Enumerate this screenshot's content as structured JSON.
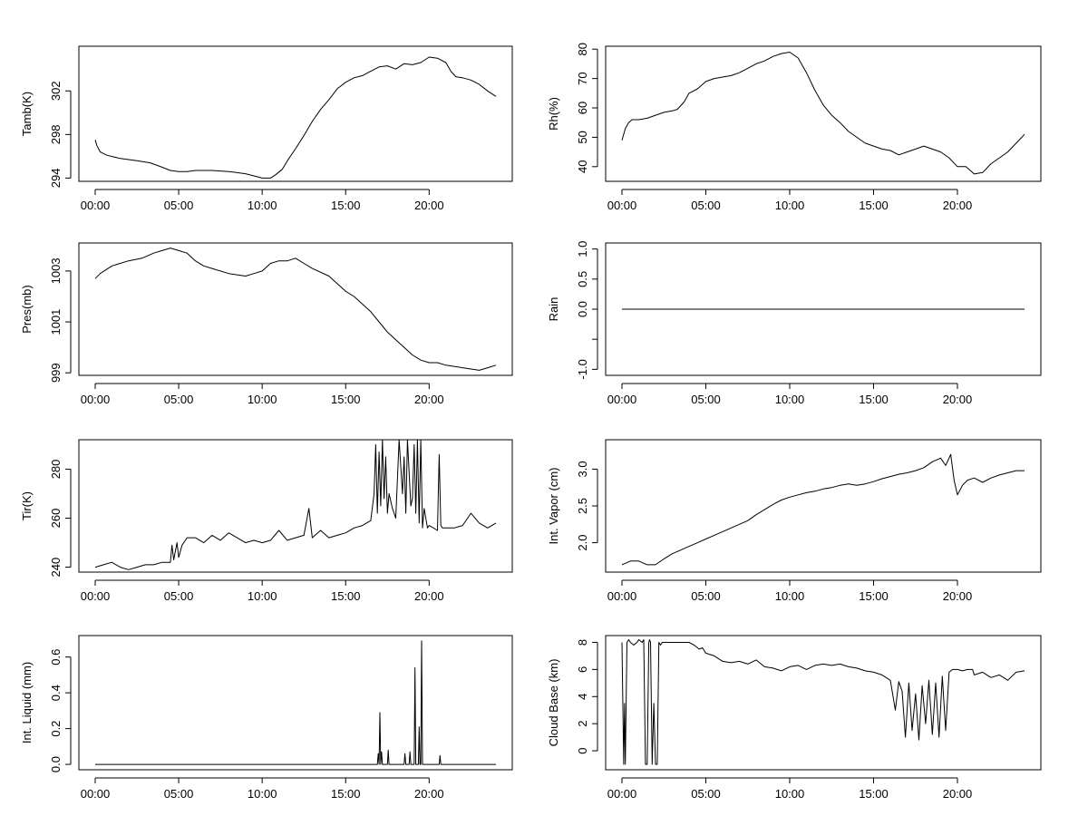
{
  "chart_data": [
    {
      "type": "line",
      "ylabel": "Tamb(K)",
      "xlim": [
        0,
        24
      ],
      "ylim": [
        293.7,
        306.1
      ],
      "xticks": [
        0,
        5,
        10,
        15,
        20
      ],
      "xtick_labels": [
        "00:00",
        "05:00",
        "10:00",
        "15:00",
        "20:00"
      ],
      "yticks": [
        294,
        298,
        302
      ],
      "ytick_labels": [
        "294",
        "298",
        "302"
      ],
      "x": [
        0.0,
        0.1,
        0.3,
        0.7,
        1.5,
        2.5,
        3.3,
        4.0,
        4.5,
        5.0,
        5.5,
        6.0,
        7.0,
        8.0,
        9.0,
        9.5,
        10.0,
        10.5,
        10.8,
        11.2,
        11.6,
        12.0,
        12.5,
        13.0,
        13.5,
        14.0,
        14.5,
        15.0,
        15.5,
        16.0,
        16.5,
        17.0,
        17.5,
        18.0,
        18.5,
        19.0,
        19.5,
        20.0,
        20.5,
        21.0,
        21.3,
        21.6,
        22.0,
        22.5,
        23.0,
        23.5,
        24.0
      ],
      "y": [
        297.5,
        297.0,
        296.4,
        296.1,
        295.8,
        295.6,
        295.4,
        295.0,
        294.7,
        294.6,
        294.6,
        294.7,
        294.7,
        294.6,
        294.4,
        294.2,
        294.0,
        294.0,
        294.3,
        294.8,
        295.8,
        296.7,
        297.9,
        299.2,
        300.3,
        301.2,
        302.2,
        302.8,
        303.2,
        303.4,
        303.8,
        304.2,
        304.3,
        304.0,
        304.5,
        304.4,
        304.6,
        305.1,
        305.0,
        304.6,
        303.8,
        303.3,
        303.2,
        303.0,
        302.6,
        302.0,
        301.5
      ]
    },
    {
      "type": "line",
      "ylabel": "Rh(%)",
      "xlim": [
        0,
        24
      ],
      "ylim": [
        35,
        81
      ],
      "xticks": [
        0,
        5,
        10,
        15,
        20
      ],
      "xtick_labels": [
        "00:00",
        "05:00",
        "10:00",
        "15:00",
        "20:00"
      ],
      "yticks": [
        40,
        50,
        60,
        70,
        80
      ],
      "ytick_labels": [
        "40",
        "50",
        "60",
        "70",
        "80"
      ],
      "x": [
        0.0,
        0.2,
        0.4,
        0.6,
        1.0,
        1.5,
        2.0,
        2.5,
        3.0,
        3.3,
        3.7,
        4.0,
        4.5,
        5.0,
        5.5,
        6.0,
        6.5,
        7.0,
        7.5,
        8.0,
        8.5,
        9.0,
        9.5,
        10.0,
        10.5,
        11.0,
        11.5,
        12.0,
        12.5,
        13.0,
        13.5,
        14.0,
        14.5,
        15.0,
        15.5,
        16.0,
        16.5,
        17.0,
        17.5,
        18.0,
        18.5,
        19.0,
        19.5,
        20.0,
        20.5,
        21.0,
        21.5,
        22.0,
        22.5,
        23.0,
        23.5,
        24.0
      ],
      "y": [
        49.0,
        53.0,
        55.0,
        56.0,
        56.0,
        56.5,
        57.5,
        58.5,
        59.0,
        59.5,
        62.0,
        65.0,
        66.5,
        69.0,
        70.0,
        70.5,
        71.0,
        72.0,
        73.5,
        75.0,
        76.0,
        77.5,
        78.5,
        79.0,
        77.0,
        72.0,
        66.0,
        61.0,
        57.5,
        55.0,
        52.0,
        50.0,
        48.0,
        47.0,
        46.0,
        45.5,
        44.0,
        45.0,
        46.0,
        47.0,
        46.0,
        45.0,
        43.0,
        40.0,
        40.0,
        37.5,
        38.0,
        41.0,
        43.0,
        45.0,
        48.0,
        51.0
      ]
    },
    {
      "type": "line",
      "ylabel": "Pres(mb)",
      "xlim": [
        0,
        24
      ],
      "ylim": [
        998.9,
        1004.1
      ],
      "xticks": [
        0,
        5,
        10,
        15,
        20
      ],
      "xtick_labels": [
        "00:00",
        "05:00",
        "10:00",
        "15:00",
        "20:00"
      ],
      "yticks": [
        999,
        1001,
        1003
      ],
      "ytick_labels": [
        "999",
        "1001",
        "1003"
      ],
      "x": [
        0.0,
        0.3,
        1.0,
        2.0,
        2.8,
        3.5,
        4.0,
        4.5,
        5.0,
        5.5,
        6.0,
        6.5,
        7.0,
        8.0,
        9.0,
        9.5,
        10.0,
        10.5,
        11.0,
        11.5,
        12.0,
        12.5,
        13.0,
        14.0,
        14.5,
        15.0,
        15.5,
        16.0,
        16.5,
        17.0,
        17.5,
        18.0,
        18.5,
        19.0,
        19.5,
        20.0,
        20.5,
        21.0,
        22.0,
        23.0,
        23.5,
        24.0
      ],
      "y": [
        1002.7,
        1002.9,
        1003.2,
        1003.4,
        1003.5,
        1003.7,
        1003.8,
        1003.9,
        1003.8,
        1003.7,
        1003.4,
        1003.2,
        1003.1,
        1002.9,
        1002.8,
        1002.9,
        1003.0,
        1003.3,
        1003.4,
        1003.4,
        1003.5,
        1003.3,
        1003.1,
        1002.8,
        1002.5,
        1002.2,
        1002.0,
        1001.7,
        1001.4,
        1001.0,
        1000.6,
        1000.3,
        1000.0,
        999.7,
        999.5,
        999.4,
        999.4,
        999.3,
        999.2,
        999.1,
        999.2,
        999.3
      ]
    },
    {
      "type": "line",
      "ylabel": "Rain",
      "xlim": [
        0,
        24
      ],
      "ylim": [
        -1.1,
        1.1
      ],
      "xticks": [
        0,
        5,
        10,
        15,
        20
      ],
      "xtick_labels": [
        "00:00",
        "05:00",
        "10:00",
        "15:00",
        "20:00"
      ],
      "yticks": [
        -1.0,
        -0.5,
        0.0,
        0.5,
        1.0
      ],
      "ytick_labels": [
        "-1.0",
        "",
        "0.0",
        "0.5",
        "1.0"
      ],
      "x": [
        0.0,
        24.0
      ],
      "y": [
        0.0,
        0.0
      ]
    },
    {
      "type": "line",
      "ylabel": "Tir(K)",
      "xlim": [
        0,
        24
      ],
      "ylim": [
        238,
        292
      ],
      "xticks": [
        0,
        5,
        10,
        15,
        20
      ],
      "xtick_labels": [
        "00:00",
        "05:00",
        "10:00",
        "15:00",
        "20:00"
      ],
      "yticks": [
        240,
        260,
        280
      ],
      "ytick_labels": [
        "240",
        "260",
        "280"
      ],
      "x": [
        0.0,
        0.5,
        1.0,
        1.5,
        2.0,
        2.5,
        3.0,
        3.5,
        4.0,
        4.5,
        4.6,
        4.7,
        4.9,
        5.0,
        5.2,
        5.5,
        6.0,
        6.5,
        7.0,
        7.5,
        8.0,
        8.5,
        9.0,
        9.5,
        10.0,
        10.5,
        11.0,
        11.5,
        12.0,
        12.5,
        12.8,
        13.0,
        13.5,
        14.0,
        14.5,
        15.0,
        15.5,
        16.0,
        16.5,
        16.7,
        16.8,
        16.9,
        17.0,
        17.1,
        17.2,
        17.3,
        17.4,
        17.5,
        17.6,
        17.8,
        18.0,
        18.2,
        18.4,
        18.5,
        18.6,
        18.7,
        18.9,
        19.0,
        19.1,
        19.2,
        19.3,
        19.4,
        19.5,
        19.6,
        19.7,
        19.9,
        20.0,
        20.5,
        20.6,
        20.7,
        20.8,
        21.0,
        21.5,
        22.0,
        22.5,
        23.0,
        23.5,
        24.0
      ],
      "y": [
        240,
        241,
        242,
        240,
        239,
        240,
        241,
        241,
        242,
        242,
        249,
        243,
        250,
        244,
        249,
        252,
        252,
        250,
        253,
        251,
        254,
        252,
        250,
        251,
        250,
        251,
        255,
        251,
        252,
        253,
        264,
        252,
        255,
        252,
        253,
        254,
        256,
        257,
        259,
        270,
        290,
        262,
        287,
        265,
        292,
        268,
        285,
        262,
        270,
        264,
        260,
        292,
        270,
        285,
        262,
        292,
        265,
        268,
        290,
        262,
        292,
        258,
        292,
        256,
        264,
        256,
        257,
        255,
        286,
        257,
        256,
        256,
        256,
        257,
        262,
        258,
        256,
        258
      ]
    },
    {
      "type": "line",
      "ylabel": "Int. Vapor (cm)",
      "xlim": [
        0,
        24
      ],
      "ylim": [
        1.6,
        3.4
      ],
      "xticks": [
        0,
        5,
        10,
        15,
        20
      ],
      "xtick_labels": [
        "00:00",
        "05:00",
        "10:00",
        "15:00",
        "20:00"
      ],
      "yticks": [
        2.0,
        2.5,
        3.0
      ],
      "ytick_labels": [
        "2.0",
        "2.5",
        "3.0"
      ],
      "x": [
        0.0,
        0.5,
        1.0,
        1.5,
        2.0,
        2.5,
        3.0,
        3.5,
        4.0,
        4.5,
        5.0,
        5.5,
        6.0,
        6.5,
        7.0,
        7.5,
        8.0,
        8.5,
        9.0,
        9.5,
        10.0,
        10.5,
        11.0,
        11.5,
        12.0,
        12.5,
        13.0,
        13.5,
        14.0,
        14.5,
        15.0,
        15.5,
        16.0,
        16.5,
        17.0,
        17.5,
        18.0,
        18.5,
        19.0,
        19.3,
        19.6,
        19.8,
        20.0,
        20.3,
        20.6,
        21.0,
        21.5,
        22.0,
        22.5,
        23.0,
        23.5,
        24.0
      ],
      "y": [
        1.7,
        1.75,
        1.75,
        1.7,
        1.7,
        1.78,
        1.85,
        1.9,
        1.95,
        2.0,
        2.05,
        2.1,
        2.15,
        2.2,
        2.25,
        2.3,
        2.38,
        2.45,
        2.52,
        2.58,
        2.62,
        2.65,
        2.68,
        2.7,
        2.73,
        2.75,
        2.78,
        2.8,
        2.78,
        2.8,
        2.83,
        2.87,
        2.9,
        2.93,
        2.95,
        2.98,
        3.02,
        3.1,
        3.15,
        3.05,
        3.2,
        2.85,
        2.65,
        2.78,
        2.85,
        2.88,
        2.82,
        2.88,
        2.92,
        2.95,
        2.98,
        2.98
      ]
    },
    {
      "type": "line",
      "ylabel": "Int. Liquid (mm)",
      "xlim": [
        0,
        24
      ],
      "ylim": [
        -0.03,
        0.72
      ],
      "xticks": [
        0,
        5,
        10,
        15,
        20
      ],
      "xtick_labels": [
        "00:00",
        "05:00",
        "10:00",
        "15:00",
        "20:00"
      ],
      "yticks": [
        0.0,
        0.2,
        0.4,
        0.6
      ],
      "ytick_labels": [
        "0.0",
        "0.2",
        "0.4",
        "0.6"
      ],
      "x": [
        0.0,
        16.9,
        16.95,
        17.0,
        17.05,
        17.1,
        17.15,
        17.2,
        17.25,
        17.5,
        17.55,
        17.6,
        18.5,
        18.55,
        18.6,
        18.8,
        18.85,
        18.9,
        19.1,
        19.15,
        19.2,
        19.35,
        19.4,
        19.45,
        19.5,
        19.55,
        19.6,
        19.65,
        20.6,
        20.65,
        20.7,
        24.0
      ],
      "y": [
        0.0,
        0.0,
        0.06,
        0.0,
        0.29,
        0.0,
        0.07,
        0.0,
        0.0,
        0.0,
        0.08,
        0.0,
        0.0,
        0.06,
        0.0,
        0.0,
        0.07,
        0.0,
        0.0,
        0.54,
        0.0,
        0.0,
        0.21,
        0.0,
        0.0,
        0.69,
        0.0,
        0.0,
        0.0,
        0.05,
        0.0,
        0.0
      ]
    },
    {
      "type": "line",
      "ylabel": "Cloud Base (km)",
      "xlim": [
        0,
        24
      ],
      "ylim": [
        -1.4,
        8.5
      ],
      "xticks": [
        0,
        5,
        10,
        15,
        20
      ],
      "xtick_labels": [
        "00:00",
        "05:00",
        "10:00",
        "15:00",
        "20:00"
      ],
      "yticks": [
        0,
        2,
        4,
        6,
        8
      ],
      "ytick_labels": [
        "0",
        "2",
        "4",
        "6",
        "8"
      ],
      "x": [
        0.0,
        0.1,
        0.15,
        0.2,
        0.3,
        0.4,
        0.5,
        0.7,
        0.9,
        1.0,
        1.2,
        1.3,
        1.4,
        1.5,
        1.6,
        1.65,
        1.7,
        1.8,
        1.9,
        2.0,
        2.05,
        2.1,
        2.2,
        2.3,
        2.4,
        2.5,
        2.6,
        2.8,
        3.0,
        3.5,
        4.0,
        4.3,
        4.6,
        4.8,
        5.0,
        5.5,
        6.0,
        6.5,
        7.0,
        7.5,
        8.0,
        8.5,
        9.0,
        9.5,
        10.0,
        10.5,
        11.0,
        11.5,
        12.0,
        12.5,
        13.0,
        13.5,
        14.0,
        14.5,
        15.0,
        15.5,
        16.0,
        16.3,
        16.5,
        16.7,
        16.9,
        17.1,
        17.3,
        17.5,
        17.7,
        17.9,
        18.1,
        18.3,
        18.5,
        18.7,
        18.9,
        19.1,
        19.3,
        19.5,
        19.7,
        20.0,
        20.3,
        20.6,
        20.9,
        21.0,
        21.5,
        22.0,
        22.5,
        23.0,
        23.5,
        24.0
      ],
      "y": [
        8.0,
        -1.0,
        3.5,
        -1.0,
        8.0,
        8.2,
        8.0,
        7.8,
        8.0,
        8.2,
        8.0,
        8.2,
        -1.0,
        -1.0,
        8.0,
        8.2,
        8.0,
        -1.0,
        3.5,
        -1.0,
        -1.0,
        -1.0,
        8.0,
        7.8,
        8.0,
        8.0,
        8.0,
        8.0,
        8.0,
        8.0,
        8.0,
        7.8,
        7.5,
        7.6,
        7.2,
        7.0,
        6.6,
        6.5,
        6.6,
        6.4,
        6.7,
        6.2,
        6.1,
        5.9,
        6.2,
        6.3,
        6.0,
        6.3,
        6.4,
        6.3,
        6.4,
        6.2,
        6.1,
        5.9,
        5.8,
        5.6,
        5.2,
        3.0,
        5.1,
        4.4,
        1.0,
        5.0,
        1.5,
        4.2,
        0.8,
        4.8,
        2.0,
        5.2,
        1.2,
        5.0,
        1.0,
        5.5,
        1.5,
        5.8,
        6.0,
        6.0,
        5.9,
        6.0,
        6.0,
        5.6,
        5.8,
        5.4,
        5.6,
        5.2,
        5.8,
        5.9
      ]
    }
  ]
}
